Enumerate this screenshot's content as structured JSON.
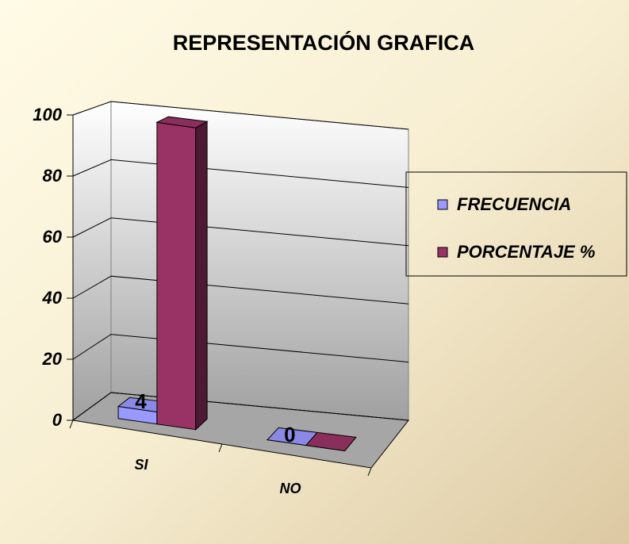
{
  "chart_data": {
    "type": "bar3d",
    "title": "REPRESENTACIÓN GRAFICA",
    "categories": [
      "SI",
      "NO"
    ],
    "series": [
      {
        "name": "FRECUENCIA",
        "color": "#9999ff",
        "values": [
          4,
          0
        ]
      },
      {
        "name": "PORCENTAJE %",
        "color": "#993366",
        "values": [
          100,
          0
        ]
      }
    ],
    "ylim": [
      0,
      100
    ],
    "yticks": [
      0,
      20,
      40,
      60,
      80,
      100
    ],
    "grid": true,
    "legend": "right",
    "data_labels_series": 0
  }
}
